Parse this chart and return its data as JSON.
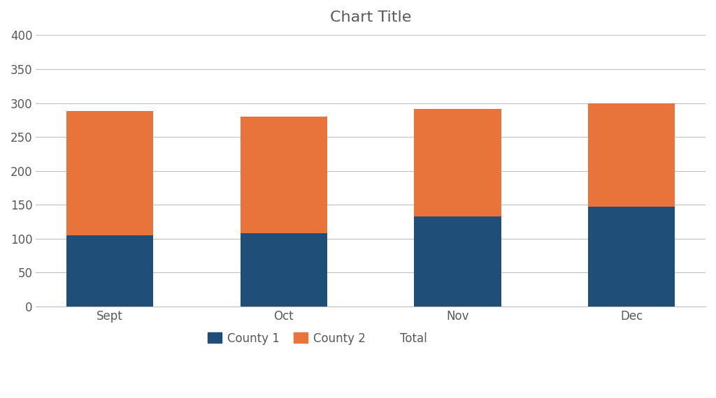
{
  "title": "Chart Title",
  "categories": [
    "Sept",
    "Oct",
    "Nov",
    "Dec"
  ],
  "county1": [
    105,
    108,
    133,
    147
  ],
  "county2": [
    183,
    172,
    158,
    153
  ],
  "color_county1": "#1F4E79",
  "color_county2": "#E8743B",
  "ylim": [
    0,
    400
  ],
  "yticks": [
    0,
    50,
    100,
    150,
    200,
    250,
    300,
    350,
    400
  ],
  "legend_labels": [
    "County 1",
    "County 2",
    "Total"
  ],
  "background_color": "#FFFFFF",
  "plot_bg_color": "#FFFFFF",
  "title_fontsize": 16,
  "tick_fontsize": 12,
  "legend_fontsize": 12,
  "title_color": "#595959",
  "tick_color": "#595959",
  "grid_color": "#C0C0C0",
  "spine_color": "#C0C0C0"
}
